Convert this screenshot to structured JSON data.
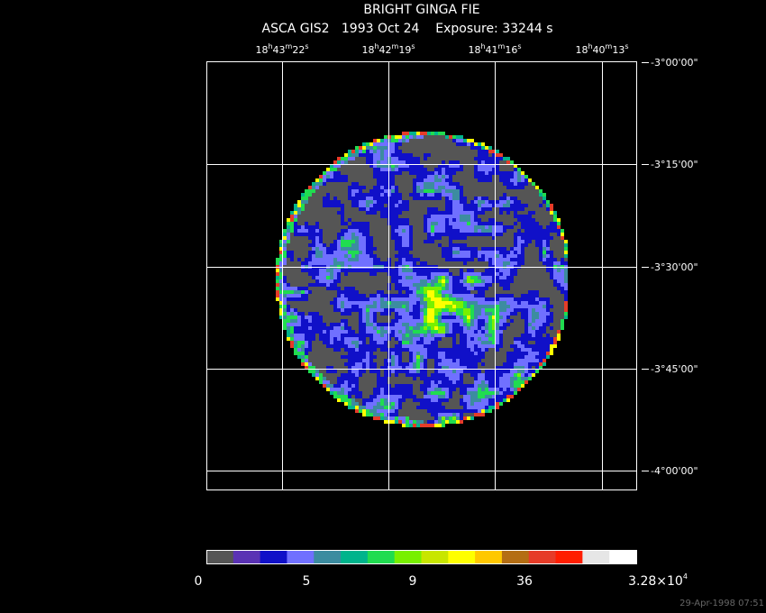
{
  "header": {
    "title": "BRIGHT GINGA FIE",
    "subtitle": "ASCA GIS2   1993 Oct 24    Exposure: 33244 s"
  },
  "ra_labels": [
    [
      "18",
      "h",
      "43",
      "m",
      "22",
      "s"
    ],
    [
      "18",
      "h",
      "42",
      "m",
      "19",
      "s"
    ],
    [
      "18",
      "h",
      "41",
      "m",
      "16",
      "s"
    ],
    [
      "18",
      "h",
      "40",
      "m",
      "13",
      "s"
    ]
  ],
  "dec_labels": [
    "-3°00'00\"",
    "-3°15'00\"",
    "-3°30'00\"",
    "-3°45'00\"",
    "-4°00'00\""
  ],
  "colorbar": {
    "colors": [
      "#555555",
      "#5a32b4",
      "#1010c8",
      "#7070ff",
      "#3c8ca0",
      "#00b48c",
      "#20dc50",
      "#78f000",
      "#c8e600",
      "#ffff00",
      "#ffc800",
      "#b46e14",
      "#e63c28",
      "#ff1e00",
      "#e6e6e6",
      "#ffffff"
    ],
    "labels": [
      [
        "0"
      ],
      [
        "5"
      ],
      [
        "9"
      ],
      [
        "36"
      ],
      [
        "3.28×10",
        "4"
      ]
    ]
  },
  "footer": {
    "timestamp": "29-Apr-1998 07:51"
  }
}
